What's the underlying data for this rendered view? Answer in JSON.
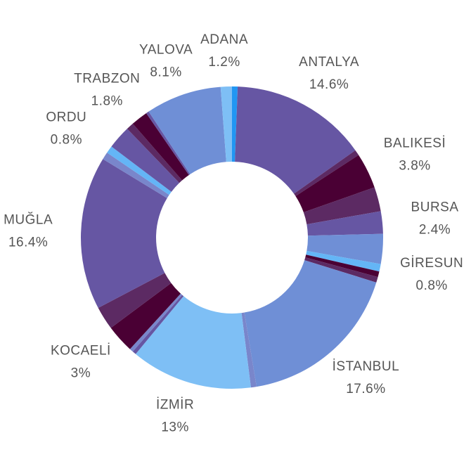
{
  "chart_data": {
    "type": "donut",
    "categories": [
      null,
      "ANTALYA",
      null,
      "BALIKESİ",
      null,
      "BURSA",
      null,
      "GİRESUN",
      null,
      null,
      "İSTANBUL",
      null,
      "İZMİR",
      null,
      null,
      "KOCAELİ",
      null,
      "MUĞLA",
      null,
      "ORDU",
      null,
      null,
      "TRABZON",
      null,
      "YALOVA",
      "ADANA"
    ],
    "values": [
      0.6,
      14.6,
      0.6,
      3.8,
      2.6,
      2.4,
      3.2,
      0.8,
      0.6,
      0.6,
      17.6,
      0.6,
      13,
      0.4,
      0.4,
      3,
      2.5,
      16.4,
      0.8,
      0.8,
      2.5,
      0.8,
      1.8,
      0.3,
      8.1,
      1.2
    ],
    "value_labels": [
      null,
      "14.6%",
      null,
      "3.8%",
      null,
      "2.4%",
      null,
      "0.8%",
      null,
      null,
      "17.6%",
      null,
      "13%",
      null,
      null,
      "3%",
      null,
      "16.4%",
      null,
      "0.8%",
      null,
      null,
      "1.8%",
      null,
      "8.1%",
      "1.2%"
    ],
    "colors": [
      "#2196f3",
      "#6656a3",
      "#5c2a63",
      "#4a0034",
      "#5c2a63",
      "#6656a3",
      "#6f8fd6",
      "#64b5f6",
      "#4a0034",
      "#5c2a63",
      "#6f8fd6",
      "#7986cb",
      "#7ebff5",
      "#6656a3",
      "#7986cb",
      "#4a0034",
      "#5c2a63",
      "#6656a3",
      "#7986cb",
      "#64b5f6",
      "#6656a3",
      "#5c2a63",
      "#4a0034",
      "#6656a3",
      "#6f8fd6",
      "#7ebff5"
    ]
  }
}
